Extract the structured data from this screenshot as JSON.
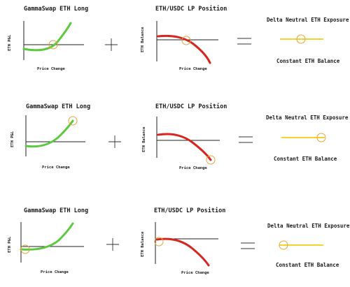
{
  "colors": {
    "long": "#5cc93f",
    "lp": "#d7261f",
    "neutral": "#f2d430",
    "marker": "#e8a33a",
    "axis": "#222222"
  },
  "rows": [
    {
      "long": {
        "title": "GammaSwap ETH Long",
        "ylabel": "ETH P&L",
        "xlabel": "Price Change"
      },
      "lp": {
        "title": "ETH/USDC LP Position",
        "ylabel": "ETH Balance",
        "xlabel": "Price Change"
      },
      "result": {
        "top": "Delta Neutral ETH Exposure",
        "bottom": "Constant ETH Balance"
      },
      "plus": "+",
      "equals": "="
    },
    {
      "long": {
        "title": "GammaSwap ETH Long",
        "ylabel": "ETH P&L",
        "xlabel": "Price Change"
      },
      "lp": {
        "title": "ETH/USDC LP Position",
        "ylabel": "ETH Balance",
        "xlabel": "Price Change"
      },
      "result": {
        "top": "Delta Neutral ETH Exposure",
        "bottom": "Constant ETH Balance"
      },
      "plus": "+",
      "equals": "="
    },
    {
      "long": {
        "title": "GammaSwap ETH Long",
        "ylabel": "ETH P&L",
        "xlabel": "Price Change"
      },
      "lp": {
        "title": "ETH/USDC LP Position",
        "ylabel": "ETH Balance",
        "xlabel": "Price Change"
      },
      "result": {
        "top": "Delta Neutral ETH Exposure",
        "bottom": "Constant ETH Balance"
      },
      "plus": "+",
      "equals": "="
    }
  ]
}
